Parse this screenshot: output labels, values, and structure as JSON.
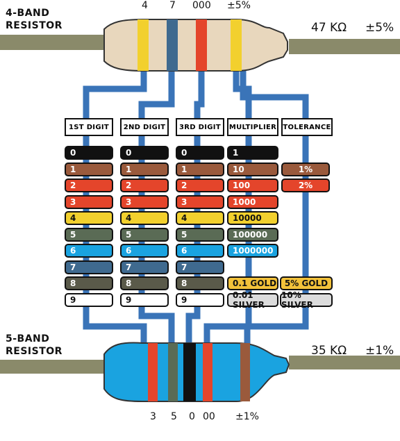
{
  "four_band": {
    "title_line1": "4-BAND",
    "title_line2": "RESISTOR",
    "codes": [
      "4",
      "7",
      "000",
      "±5%"
    ],
    "value": "47 KΩ",
    "tolerance": "±5%"
  },
  "five_band": {
    "title_line1": "5-BAND",
    "title_line2": "RESISTOR",
    "codes": [
      "3",
      "5",
      "0",
      "00",
      "±1%"
    ],
    "value": "35 KΩ",
    "tolerance": "±1%"
  },
  "headers": {
    "digit1": "1ST DIGIT",
    "digit2": "2ND DIGIT",
    "digit3": "3RD DIGIT",
    "multiplier": "MULTIPLIER",
    "tolerance": "TOLERANCE"
  },
  "digits": [
    "0",
    "1",
    "2",
    "3",
    "4",
    "5",
    "6",
    "7",
    "8",
    "9"
  ],
  "multipliers": [
    "1",
    "10",
    "100",
    "1000",
    "10000",
    "100000",
    "1000000"
  ],
  "multiplier_extra": [
    "0.1 GOLD",
    "0.01 SILVER"
  ],
  "tolerances": [
    "1%",
    "2%"
  ],
  "tolerance_extra": [
    "5% GOLD",
    "10% SILVER"
  ],
  "colors": {
    "black": "#111111",
    "brown": "#9a5a3c",
    "red": "#e4452b",
    "orange": "#e4452b",
    "yellow": "#f2d02e",
    "green": "#5a6b55",
    "blue": "#1aa3e0",
    "violet": "#3f6a8f",
    "grey": "#5a5a4a",
    "white": "#ffffff",
    "gold": "#f3c23a",
    "silver": "#dcdcdc",
    "trace": "#3a74b8",
    "body4": "#e8d7bd",
    "body5": "#1aa3e0",
    "lead": "#8a8a6a"
  }
}
